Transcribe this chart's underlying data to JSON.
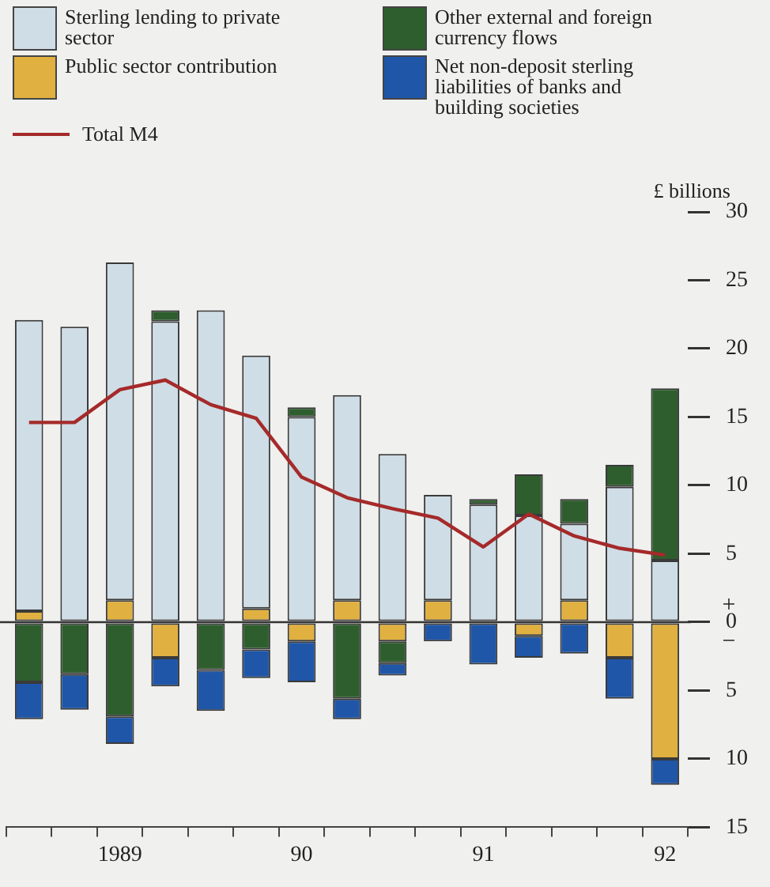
{
  "chart_data": {
    "type": "bar",
    "stacked": true,
    "ylabel": "£ billions",
    "categories": [
      null,
      null,
      "1989",
      null,
      null,
      null,
      "90",
      null,
      null,
      null,
      "91",
      null,
      null,
      null,
      "92"
    ],
    "series": [
      {
        "name": "Public sector contribution",
        "color": "#e0b040",
        "values": [
          0.8,
          0,
          1.6,
          -2.6,
          0,
          1.0,
          -1.4,
          1.6,
          -1.4,
          1.6,
          0,
          -1.0,
          1.6,
          -2.6,
          -10.0
        ]
      },
      {
        "name": "Sterling lending to private sector",
        "color": "#cfdde6",
        "values": [
          21.3,
          21.6,
          24.7,
          22.0,
          22.8,
          18.5,
          15.0,
          15.0,
          12.3,
          7.7,
          8.6,
          7.8,
          5.6,
          9.9,
          4.5
        ]
      },
      {
        "name": "Other external and foreign currency flows",
        "color": "#2e5e2e",
        "values": [
          -4.4,
          -3.8,
          -6.9,
          0.8,
          -3.5,
          -2.0,
          0.7,
          -5.6,
          -1.6,
          0,
          0.4,
          3.0,
          1.8,
          1.6,
          12.6
        ]
      },
      {
        "name": "Net non-deposit sterling liabilities of banks and building societies",
        "color": "#1f56a8",
        "values": [
          -2.7,
          -2.6,
          -2.0,
          -2.1,
          -3.0,
          -2.1,
          -3.0,
          -1.5,
          -0.9,
          -1.4,
          -3.1,
          -1.6,
          -2.3,
          -3.0,
          -1.9
        ]
      },
      {
        "name": "Total M4",
        "type": "line",
        "color": "#a52a2a",
        "values": [
          14.6,
          14.6,
          17.0,
          17.7,
          15.9,
          14.9,
          10.6,
          9.1,
          8.3,
          7.6,
          5.5,
          7.9,
          6.3,
          5.4,
          4.9
        ]
      }
    ],
    "ylim": [
      -15,
      30
    ],
    "yticks": [
      {
        "value": -15,
        "label": "15"
      },
      {
        "value": -10,
        "label": "10"
      },
      {
        "value": -5,
        "label": "5"
      },
      0,
      5,
      10,
      15,
      20,
      25,
      30
    ],
    "ref_lines": [
      {
        "axis": "y",
        "value": 0
      }
    ],
    "annotations": [
      "+",
      "−"
    ],
    "legend": "top left",
    "grid": false,
    "marker": "none",
    "line_style": "solid"
  }
}
